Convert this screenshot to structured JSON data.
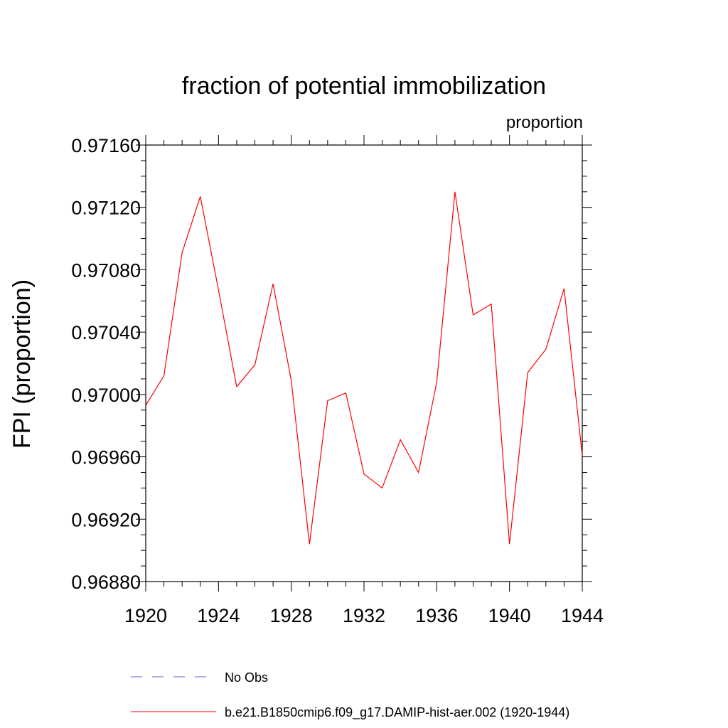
{
  "chart_data": {
    "type": "line",
    "title": "fraction of potential immobilization",
    "subtitle_right": "proportion",
    "ylabel": "FPI  (proportion)",
    "xlabel": "",
    "xlim": [
      1920,
      1944
    ],
    "ylim": [
      0.9688,
      0.9716
    ],
    "x_ticks": [
      1920,
      1924,
      1928,
      1932,
      1936,
      1940,
      1944
    ],
    "x_tick_labels": [
      "1920",
      "1924",
      "1928",
      "1932",
      "1936",
      "1940",
      "1944"
    ],
    "y_ticks": [
      0.9688,
      0.9692,
      0.9696,
      0.97,
      0.9704,
      0.9708,
      0.9712,
      0.9716
    ],
    "y_tick_labels": [
      "0.96880",
      "0.96920",
      "0.96960",
      "0.97000",
      "0.97040",
      "0.97080",
      "0.97120",
      "0.97160"
    ],
    "grid": false,
    "legend_position": "bottom",
    "x": [
      1920,
      1921,
      1922,
      1923,
      1924,
      1925,
      1926,
      1927,
      1928,
      1929,
      1930,
      1931,
      1932,
      1933,
      1934,
      1935,
      1936,
      1937,
      1938,
      1939,
      1940,
      1941,
      1942,
      1943,
      1944
    ],
    "series": [
      {
        "name": "b.e21.B1850cmip6.f09_g17.DAMIP-hist-aer.002 (1920-1944)",
        "color": "#ff0000",
        "style": "solid",
        "values": [
          0.96993,
          0.97012,
          0.97091,
          0.97127,
          0.97067,
          0.97005,
          0.97019,
          0.97071,
          0.97009,
          0.96904,
          0.96996,
          0.97001,
          0.96949,
          0.9694,
          0.96971,
          0.9695,
          0.97008,
          0.9713,
          0.97051,
          0.97058,
          0.96904,
          0.97014,
          0.97029,
          0.97068,
          0.96961
        ]
      }
    ],
    "legend": [
      {
        "label": "No Obs",
        "color": "#6a5acd",
        "style": "dashed"
      },
      {
        "label": "b.e21.B1850cmip6.f09_g17.DAMIP-hist-aer.002 (1920-1944)",
        "color": "#ff0000",
        "style": "solid"
      }
    ]
  }
}
